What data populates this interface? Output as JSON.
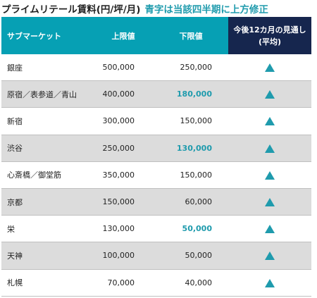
{
  "header": {
    "title": "プライムリテール賃料(円/坪/月)",
    "note": "青字は当該四半期に上方修正"
  },
  "table": {
    "columns": {
      "submarket": "サブマーケット",
      "upper": "上限値",
      "lower": "下限値",
      "outlook": "今後12カ月の見通し\n(平均)"
    },
    "rows": [
      {
        "submarket": "銀座",
        "upper": "500,000",
        "lower": "250,000",
        "lower_revised": false,
        "outlook_icon": "up-triangle-icon"
      },
      {
        "submarket": "原宿／表参道／青山",
        "upper": "400,000",
        "lower": "180,000",
        "lower_revised": true,
        "outlook_icon": "up-triangle-icon"
      },
      {
        "submarket": "新宿",
        "upper": "300,000",
        "lower": "150,000",
        "lower_revised": false,
        "outlook_icon": "up-triangle-icon"
      },
      {
        "submarket": "渋谷",
        "upper": "250,000",
        "lower": "130,000",
        "lower_revised": true,
        "outlook_icon": "up-triangle-icon"
      },
      {
        "submarket": "心斎橋／御堂筋",
        "upper": "350,000",
        "lower": "150,000",
        "lower_revised": false,
        "outlook_icon": "up-triangle-icon"
      },
      {
        "submarket": "京都",
        "upper": "150,000",
        "lower": "60,000",
        "lower_revised": false,
        "outlook_icon": "up-triangle-icon"
      },
      {
        "submarket": "栄",
        "upper": "130,000",
        "lower": "50,000",
        "lower_revised": true,
        "outlook_icon": "up-triangle-icon"
      },
      {
        "submarket": "天神",
        "upper": "100,000",
        "lower": "50,000",
        "lower_revised": false,
        "outlook_icon": "up-triangle-icon"
      },
      {
        "submarket": "札幌",
        "upper": "70,000",
        "lower": "40,000",
        "lower_revised": false,
        "outlook_icon": "up-triangle-icon"
      }
    ]
  },
  "colors": {
    "header_bg": "#06a0b4",
    "outlook_header_bg": "#16264e",
    "revised_text": "#1f9bad",
    "alt_row_bg": "#dcdcdc",
    "icon": "#1f9bad"
  }
}
